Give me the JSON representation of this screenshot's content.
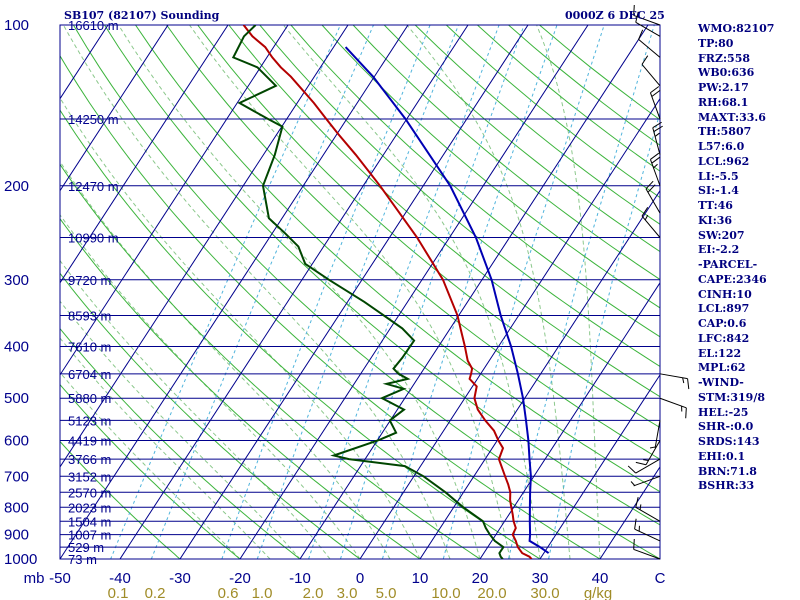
{
  "header": {
    "station": "SB107 (82107) Sounding",
    "valid_time": "0000Z  6 DEC 25"
  },
  "indices": [
    "WMO:82107",
    "TP:80",
    "FRZ:558",
    "WB0:636",
    "PW:2.17",
    "RH:68.1",
    "MAXT:33.6",
    "TH:5807",
    "L57:6.0",
    "LCL:962",
    "LI:-5.5",
    "SI:-1.4",
    "TT:46",
    "KI:36",
    "SW:207",
    "EI:-2.2",
    "-PARCEL-",
    "CAPE:2346",
    "CINH:10",
    "LCL:897",
    "CAP:0.6",
    "LFC:842",
    "EL:122",
    "MPL:62",
    "-WIND-",
    "STM:319/8",
    "HEL:-25",
    "SHR-:0.0",
    "SRDS:143",
    "EHI:0.1",
    "BRN:71.8",
    "BSHR:33"
  ],
  "chart_data": {
    "type": "line",
    "title": "",
    "xlabel": "",
    "ylabel": "mb",
    "x_unit": "C",
    "mixing_ratio_unit": "g/kg",
    "xlim": [
      -50,
      50
    ],
    "ylim": [
      1000,
      100
    ],
    "y_scale": "log",
    "pressure_ticks": [
      100,
      200,
      300,
      400,
      500,
      600,
      700,
      800,
      900,
      1000
    ],
    "temperature_ticks": [
      -50,
      -40,
      -30,
      -20,
      -10,
      0,
      10,
      20,
      30,
      40,
      50
    ],
    "temperature_tick_labels": [
      "-50",
      "-40",
      "-30",
      "-20",
      "-10",
      "0",
      "10",
      "20",
      "30",
      "40",
      "C"
    ],
    "mixing_ratio_ticks": [
      "0.1",
      "0.2",
      "0.6",
      "1.0",
      "2.0",
      "3.0",
      "5.0",
      "10.0",
      "20.0",
      "30.0",
      "g/kg"
    ],
    "height_labels": [
      {
        "p": 100,
        "label": "16610 m"
      },
      {
        "p": 150,
        "label": "14250 m"
      },
      {
        "p": 200,
        "label": "12470 m"
      },
      {
        "p": 250,
        "label": "10990 m"
      },
      {
        "p": 300,
        "label": "9720 m"
      },
      {
        "p": 350,
        "label": "8593 m"
      },
      {
        "p": 400,
        "label": "7610 m"
      },
      {
        "p": 450,
        "label": "6704 m"
      },
      {
        "p": 500,
        "label": "5880 m"
      },
      {
        "p": 550,
        "label": "5123 m"
      },
      {
        "p": 600,
        "label": "4419 m"
      },
      {
        "p": 650,
        "label": "3766 m"
      },
      {
        "p": 700,
        "label": "3152 m"
      },
      {
        "p": 750,
        "label": "2570 m"
      },
      {
        "p": 800,
        "label": "2023 m"
      },
      {
        "p": 850,
        "label": "1504 m"
      },
      {
        "p": 900,
        "label": "1007 m"
      },
      {
        "p": 950,
        "label": "529 m"
      },
      {
        "p": 1000,
        "label": "73 m"
      }
    ],
    "series": [
      {
        "id": "temperature",
        "color": "#b40000",
        "points": [
          {
            "p": 1000,
            "t": 28.6
          },
          {
            "p": 990,
            "t": 28.0
          },
          {
            "p": 975,
            "t": 26.4
          },
          {
            "p": 950,
            "t": 25.0
          },
          {
            "p": 925,
            "t": 24.0
          },
          {
            "p": 900,
            "t": 22.8
          },
          {
            "p": 875,
            "t": 22.6
          },
          {
            "p": 850,
            "t": 21.5
          },
          {
            "p": 825,
            "t": 20.6
          },
          {
            "p": 800,
            "t": 19.6
          },
          {
            "p": 775,
            "t": 18.6
          },
          {
            "p": 750,
            "t": 17.8
          },
          {
            "p": 725,
            "t": 16.6
          },
          {
            "p": 700,
            "t": 15.2
          },
          {
            "p": 650,
            "t": 12.3
          },
          {
            "p": 620,
            "t": 11.8
          },
          {
            "p": 600,
            "t": 10.2
          },
          {
            "p": 575,
            "t": 8.4
          },
          {
            "p": 550,
            "t": 5.8
          },
          {
            "p": 525,
            "t": 3.4
          },
          {
            "p": 500,
            "t": 1.6
          },
          {
            "p": 475,
            "t": 0.7
          },
          {
            "p": 460,
            "t": -1.3
          },
          {
            "p": 450,
            "t": -1.6
          },
          {
            "p": 440,
            "t": -2.0
          },
          {
            "p": 425,
            "t": -3.6
          },
          {
            "p": 410,
            "t": -4.8
          },
          {
            "p": 400,
            "t": -5.6
          },
          {
            "p": 370,
            "t": -8.3
          },
          {
            "p": 350,
            "t": -10.2
          },
          {
            "p": 300,
            "t": -16.5
          },
          {
            "p": 250,
            "t": -25.4
          },
          {
            "p": 200,
            "t": -37.2
          },
          {
            "p": 175,
            "t": -44.6
          },
          {
            "p": 160,
            "t": -49.8
          },
          {
            "p": 150,
            "t": -53.4
          },
          {
            "p": 140,
            "t": -57.2
          },
          {
            "p": 125,
            "t": -63.9
          },
          {
            "p": 120,
            "t": -66.6
          },
          {
            "p": 115,
            "t": -69.1
          },
          {
            "p": 110,
            "t": -71.4
          },
          {
            "p": 105,
            "t": -74.7
          },
          {
            "p": 100,
            "t": -77.4
          }
        ]
      },
      {
        "id": "dewpoint",
        "color": "#004600",
        "points": [
          {
            "p": 1000,
            "t": 23.8
          },
          {
            "p": 990,
            "t": 23.2
          },
          {
            "p": 975,
            "t": 22.6
          },
          {
            "p": 950,
            "t": 22.6
          },
          {
            "p": 925,
            "t": 20.5
          },
          {
            "p": 900,
            "t": 19.0
          },
          {
            "p": 875,
            "t": 17.6
          },
          {
            "p": 850,
            "t": 16.4
          },
          {
            "p": 800,
            "t": 11.6
          },
          {
            "p": 750,
            "t": 7.0
          },
          {
            "p": 700,
            "t": 1.6
          },
          {
            "p": 670,
            "t": -2.6
          },
          {
            "p": 650,
            "t": -12.7
          },
          {
            "p": 640,
            "t": -15.6
          },
          {
            "p": 600,
            "t": -9.9
          },
          {
            "p": 580,
            "t": -7.7
          },
          {
            "p": 550,
            "t": -10.1
          },
          {
            "p": 525,
            "t": -8.9
          },
          {
            "p": 500,
            "t": -13.8
          },
          {
            "p": 480,
            "t": -11.2
          },
          {
            "p": 470,
            "t": -14.6
          },
          {
            "p": 460,
            "t": -11.6
          },
          {
            "p": 450,
            "t": -13.7
          },
          {
            "p": 440,
            "t": -15.1
          },
          {
            "p": 420,
            "t": -14.8
          },
          {
            "p": 390,
            "t": -14.7
          },
          {
            "p": 370,
            "t": -18.0
          },
          {
            "p": 330,
            "t": -27.2
          },
          {
            "p": 300,
            "t": -35.5
          },
          {
            "p": 280,
            "t": -41.2
          },
          {
            "p": 260,
            "t": -44.2
          },
          {
            "p": 245,
            "t": -48.0
          },
          {
            "p": 230,
            "t": -52.2
          },
          {
            "p": 200,
            "t": -56.7
          },
          {
            "p": 175,
            "t": -58.1
          },
          {
            "p": 155,
            "t": -59.9
          },
          {
            "p": 150,
            "t": -63.1
          },
          {
            "p": 140,
            "t": -69.6
          },
          {
            "p": 130,
            "t": -65.4
          },
          {
            "p": 120,
            "t": -70.5
          },
          {
            "p": 115,
            "t": -75.6
          },
          {
            "p": 105,
            "t": -76.1
          },
          {
            "p": 100,
            "t": -75.4
          }
        ]
      },
      {
        "id": "parcel",
        "color": "#0000b4",
        "points": [
          {
            "p": 975,
            "t": 30.8
          },
          {
            "p": 950,
            "t": 28.7
          },
          {
            "p": 925,
            "t": 26.3
          },
          {
            "p": 900,
            "t": 25.7
          },
          {
            "p": 850,
            "t": 24.2
          },
          {
            "p": 800,
            "t": 22.7
          },
          {
            "p": 750,
            "t": 21.1
          },
          {
            "p": 700,
            "t": 19.5
          },
          {
            "p": 650,
            "t": 17.4
          },
          {
            "p": 600,
            "t": 15.2
          },
          {
            "p": 550,
            "t": 12.6
          },
          {
            "p": 500,
            "t": 9.7
          },
          {
            "p": 450,
            "t": 6.2
          },
          {
            "p": 400,
            "t": 2.1
          },
          {
            "p": 350,
            "t": -3.0
          },
          {
            "p": 300,
            "t": -8.4
          },
          {
            "p": 250,
            "t": -15.6
          },
          {
            "p": 200,
            "t": -25.5
          },
          {
            "p": 150,
            "t": -40.2
          },
          {
            "p": 125,
            "t": -50.2
          },
          {
            "p": 110,
            "t": -58.0
          }
        ]
      }
    ],
    "wind_barbs": [
      {
        "p": 1000,
        "dir": 290,
        "spd": 10
      },
      {
        "p": 925,
        "dir": 295,
        "spd": 15
      },
      {
        "p": 850,
        "dir": 300,
        "spd": 15
      },
      {
        "p": 700,
        "dir": 250,
        "spd": 5
      },
      {
        "p": 650,
        "dir": 240,
        "spd": 10
      },
      {
        "p": 600,
        "dir": 210,
        "spd": 15
      },
      {
        "p": 550,
        "dir": 190,
        "spd": 5
      },
      {
        "p": 500,
        "dir": 110,
        "spd": 15
      },
      {
        "p": 450,
        "dir": 100,
        "spd": 15
      },
      {
        "p": 250,
        "dir": 320,
        "spd": 15
      },
      {
        "p": 225,
        "dir": 330,
        "spd": 20
      },
      {
        "p": 200,
        "dir": 340,
        "spd": 25
      },
      {
        "p": 175,
        "dir": 345,
        "spd": 25
      },
      {
        "p": 150,
        "dir": 340,
        "spd": 20
      },
      {
        "p": 130,
        "dir": 320,
        "spd": 10
      },
      {
        "p": 115,
        "dir": 310,
        "spd": 10
      },
      {
        "p": 105,
        "dir": 300,
        "spd": 10
      },
      {
        "p": 100,
        "dir": 290,
        "spd": 15
      }
    ]
  }
}
